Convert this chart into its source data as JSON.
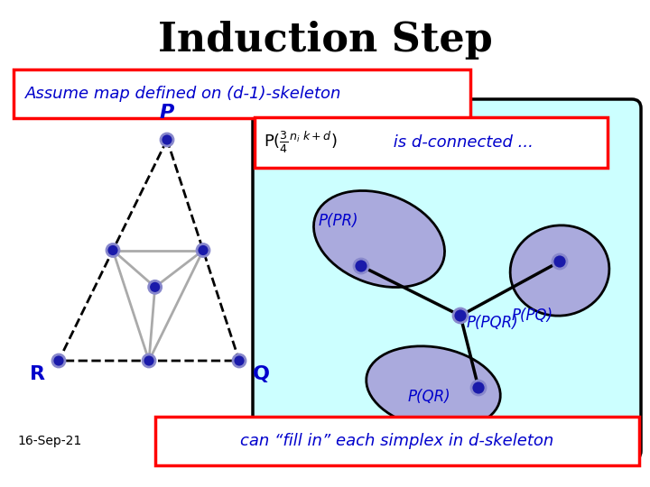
{
  "title": "Induction Step",
  "title_fontsize": 32,
  "bg_color": "#ffffff",
  "cyan_bg": "#ccffff",
  "purple_blob": "#aaaadd",
  "blue_dot": "#1a1aaa",
  "box_text_color": "#0000cc",
  "label_assume": "Assume map defined on (d-1)-skeleton",
  "label_connected": " is d-connected ...",
  "label_formula": "P(¾ⁿⁱ k+d)",
  "label_bottom": "can “fill in” each simplex in d-skeleton",
  "label_P": "P",
  "label_R": "R",
  "label_Q": "Q",
  "label_PPR": "P(PR)",
  "label_PPQR": "P(PQR)",
  "label_PPQ": "P(PQ)",
  "label_PQR": "P(QR)",
  "date_label": "16-Sep-21"
}
